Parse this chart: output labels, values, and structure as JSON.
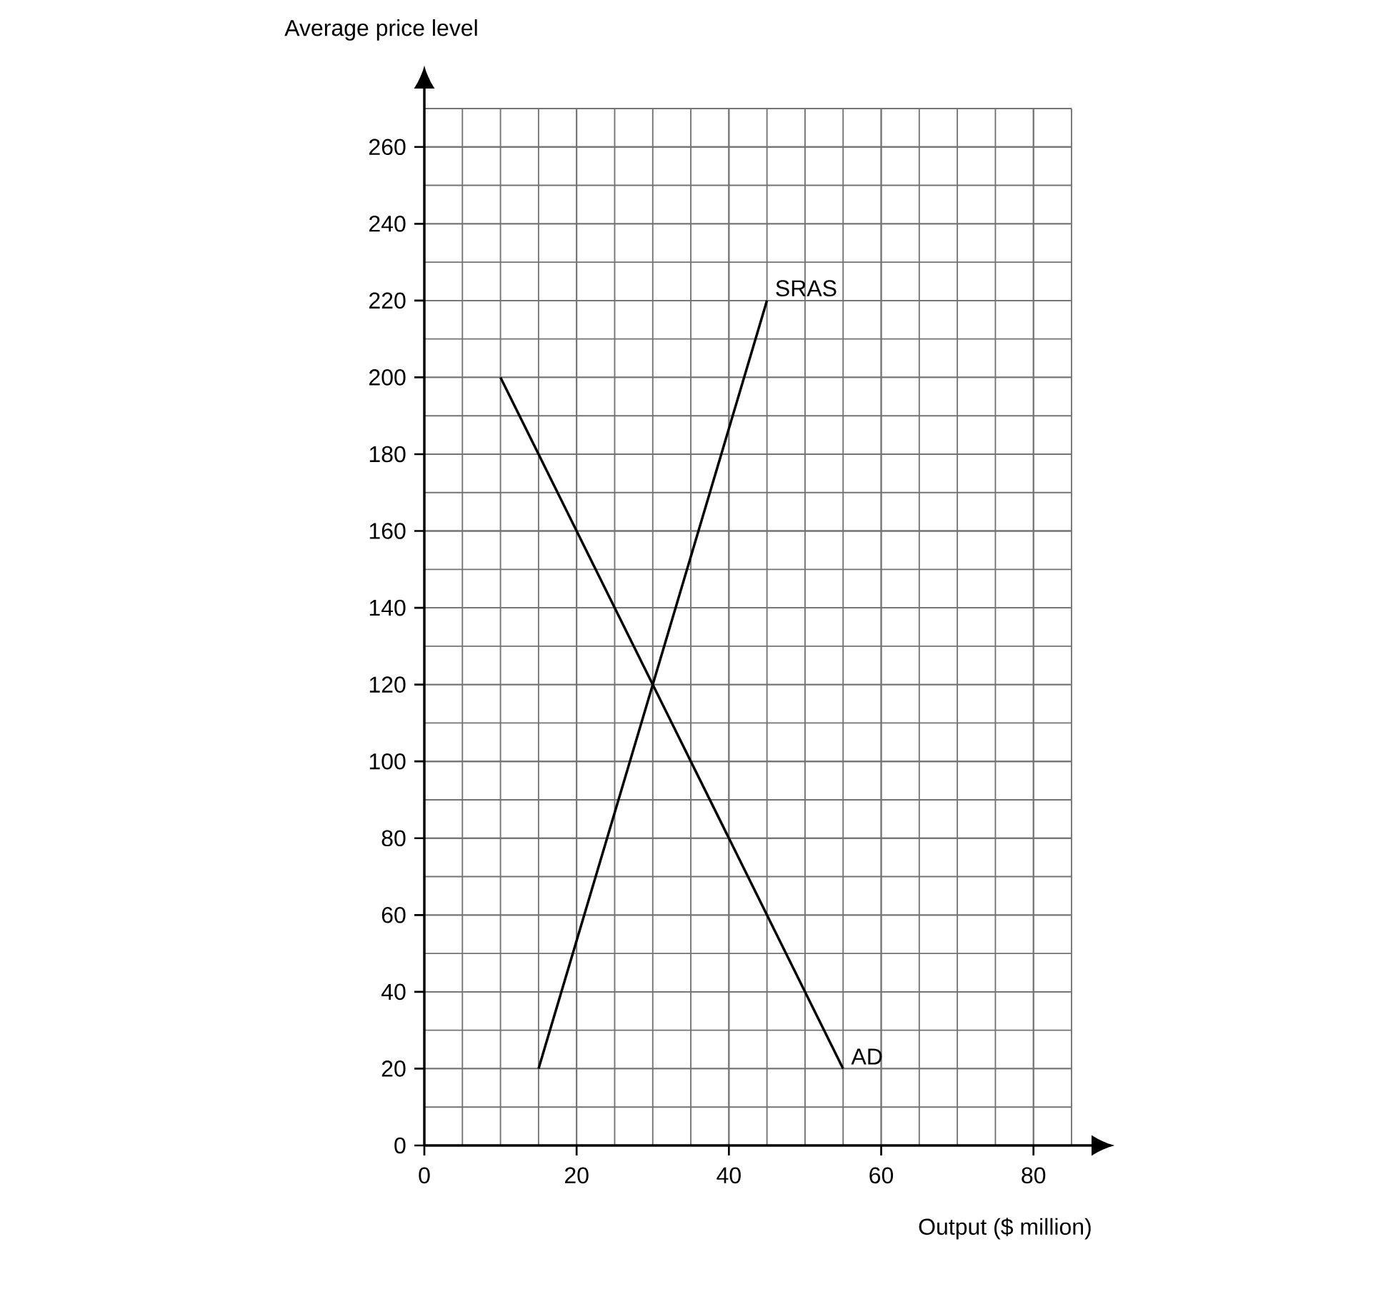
{
  "chart_data": {
    "type": "line",
    "xlabel": "Output ($ million)",
    "ylabel": "Average price level",
    "xlim": [
      0,
      85
    ],
    "ylim": [
      0,
      270
    ],
    "xticks": [
      0,
      20,
      40,
      60,
      80
    ],
    "yticks": [
      0,
      20,
      40,
      60,
      80,
      100,
      120,
      140,
      160,
      180,
      200,
      220,
      240,
      260
    ],
    "grid": true,
    "marker": "none",
    "line_style": "solid",
    "series": [
      {
        "name": "SRAS",
        "color": "#000000",
        "x": [
          15,
          45
        ],
        "values": [
          20,
          220
        ]
      },
      {
        "name": "AD",
        "color": "#000000",
        "x": [
          10,
          55
        ],
        "values": [
          200,
          20
        ]
      }
    ]
  }
}
